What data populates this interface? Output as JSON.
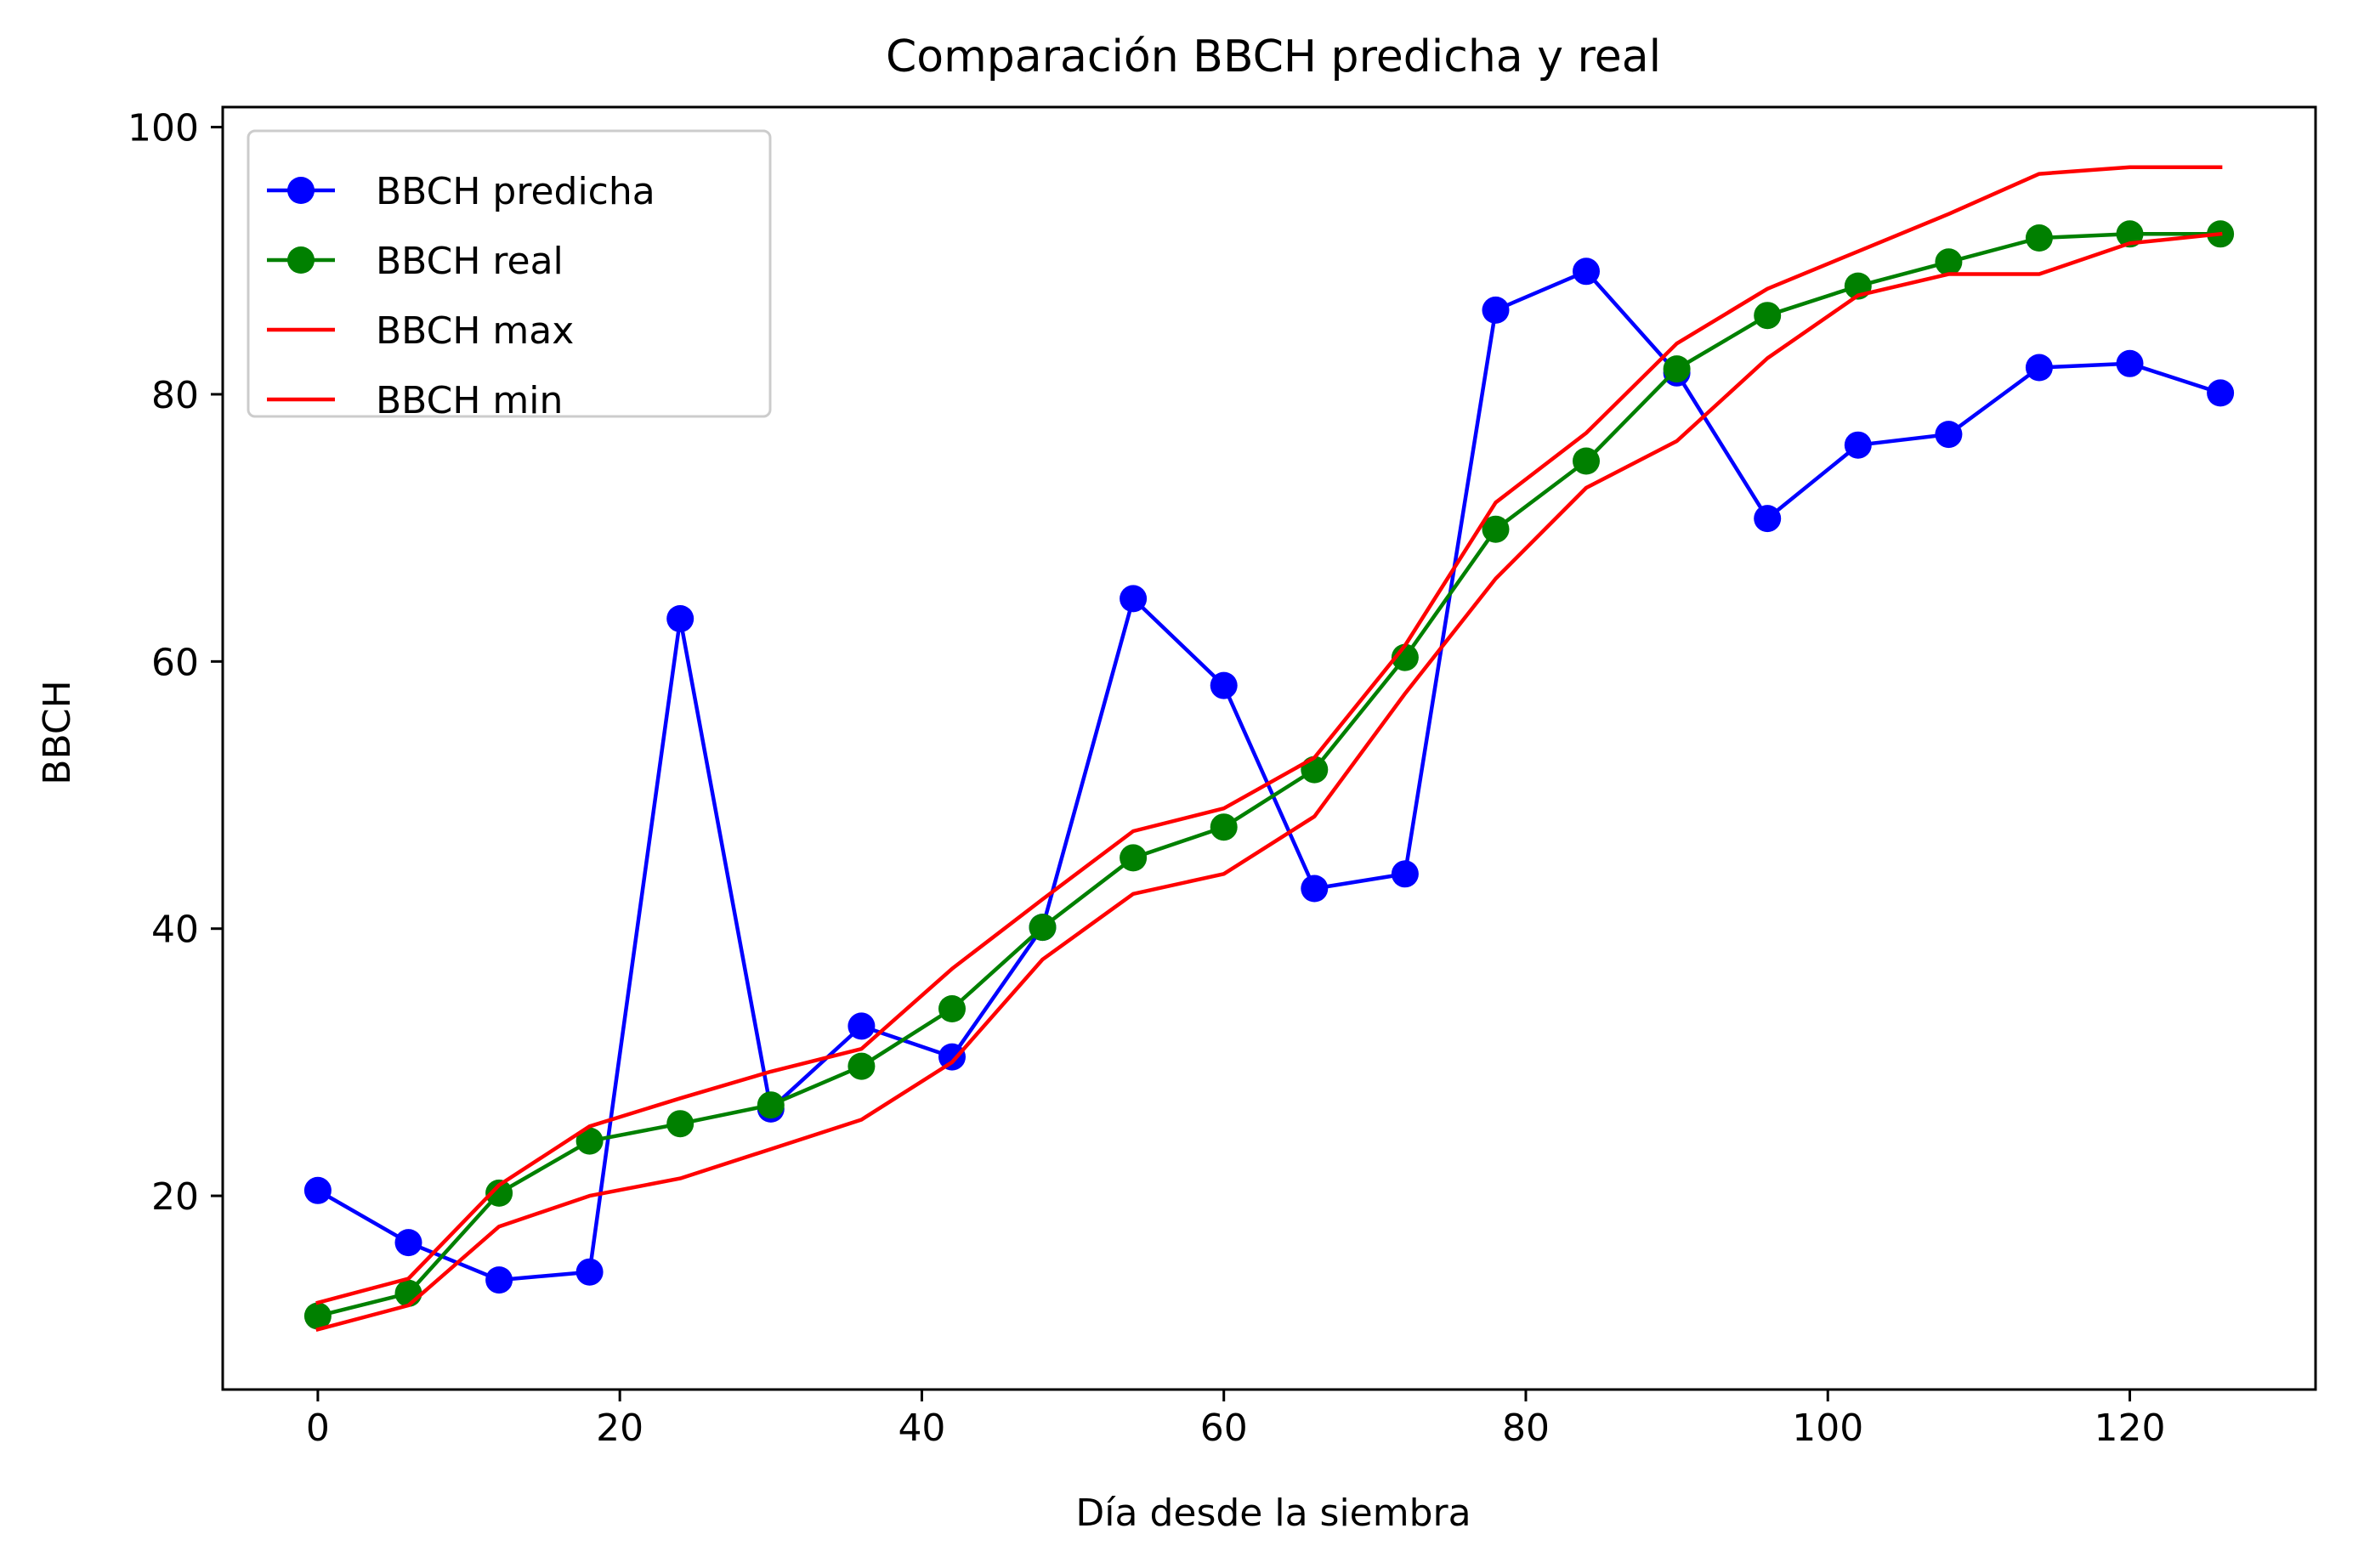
{
  "chart_data": {
    "type": "line",
    "title": "Comparación BBCH predicha y real",
    "xlabel": "Día desde la siembra",
    "ylabel": "BBCH",
    "xlim": [
      -6.3,
      132.3
    ],
    "ylim": [
      5.5,
      101.5
    ],
    "xticks": [
      0,
      20,
      40,
      60,
      80,
      100,
      120
    ],
    "yticks": [
      20,
      40,
      60,
      80,
      100
    ],
    "grid": false,
    "legend_position": "top-left",
    "x": [
      0,
      6,
      12,
      18,
      24,
      30,
      36,
      42,
      48,
      54,
      60,
      66,
      72,
      78,
      84,
      90,
      96,
      102,
      108,
      114,
      120,
      126
    ],
    "series": [
      {
        "name": "BBCH predicha",
        "color": "#0000ff",
        "marker": true,
        "values": [
          20.4,
          16.5,
          13.7,
          14.3,
          63.2,
          26.5,
          32.7,
          30.4,
          40.1,
          64.7,
          58.2,
          43.0,
          44.1,
          86.3,
          89.2,
          81.6,
          70.7,
          76.2,
          77.0,
          82.0,
          82.3,
          80.1
        ]
      },
      {
        "name": "BBCH real",
        "color": "#008000",
        "marker": true,
        "values": [
          11.0,
          12.7,
          20.2,
          24.1,
          25.4,
          26.8,
          29.7,
          34.0,
          40.1,
          45.3,
          47.6,
          51.9,
          60.3,
          69.9,
          75.0,
          81.9,
          85.9,
          88.1,
          89.9,
          91.7,
          92.0,
          92.0
        ]
      },
      {
        "name": "BBCH max",
        "color": "#ff0000",
        "marker": false,
        "values": [
          12.0,
          13.8,
          20.8,
          25.2,
          27.3,
          29.3,
          31.0,
          37.0,
          42.2,
          47.3,
          49.0,
          52.8,
          61.2,
          71.9,
          77.1,
          83.8,
          87.9,
          90.7,
          93.5,
          96.5,
          97.0,
          97.0
        ]
      },
      {
        "name": "BBCH min",
        "color": "#ff0000",
        "marker": false,
        "values": [
          10.0,
          11.8,
          17.7,
          20.0,
          21.3,
          23.5,
          25.7,
          30.0,
          37.7,
          42.6,
          44.1,
          48.4,
          57.6,
          66.2,
          73.0,
          76.5,
          82.7,
          87.4,
          89.0,
          89.0,
          91.3,
          92.0
        ]
      }
    ]
  }
}
